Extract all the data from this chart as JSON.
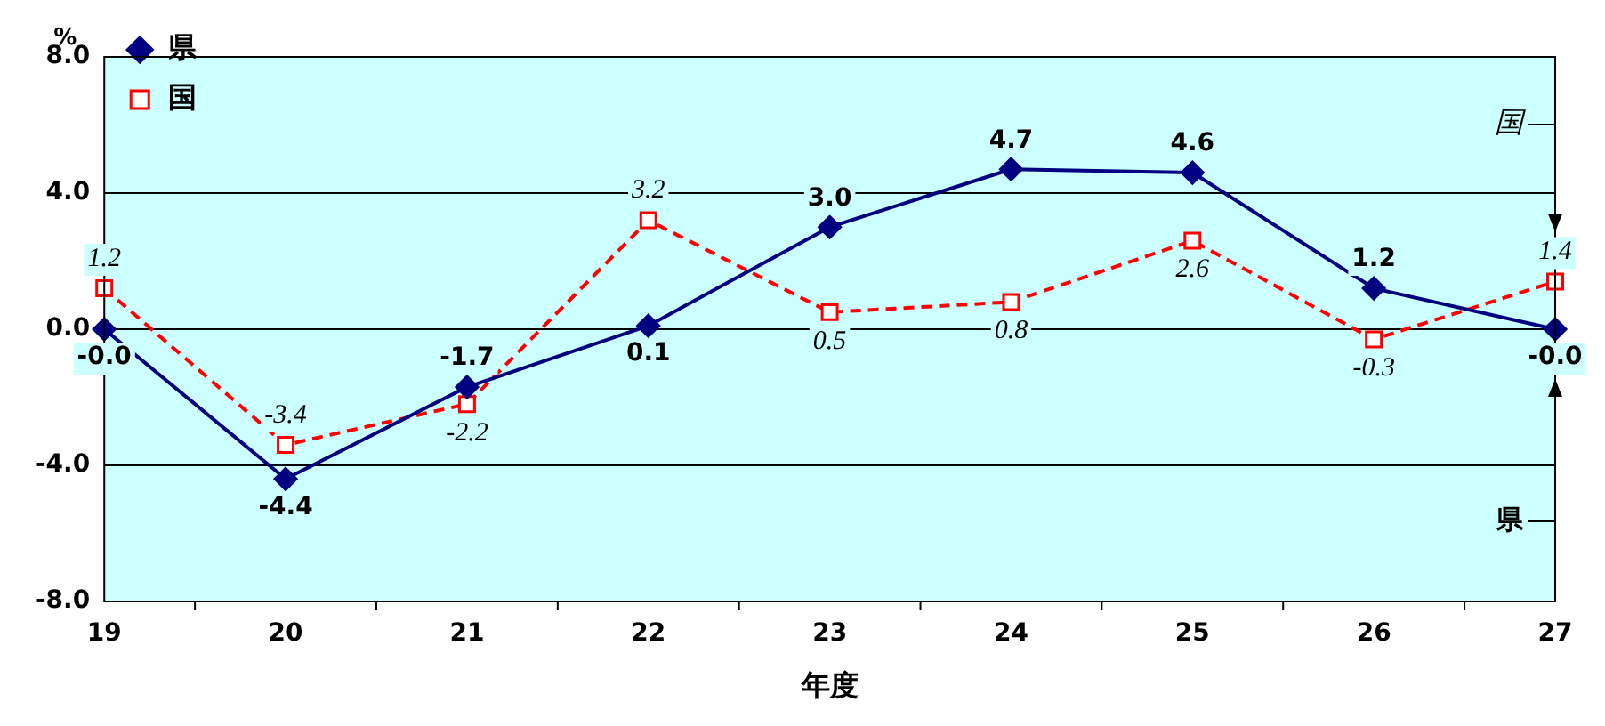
{
  "chart_data": {
    "type": "line",
    "xlabel": "年度",
    "ylabel": "%",
    "categories": [
      "19",
      "20",
      "21",
      "22",
      "23",
      "24",
      "25",
      "26",
      "27"
    ],
    "series": [
      {
        "name": "県",
        "color": "#000080",
        "values": [
          -0.0,
          -4.4,
          -1.7,
          0.1,
          3.0,
          4.7,
          4.6,
          1.2,
          -0.0
        ],
        "value_labels": [
          "-0.0",
          "-4.4",
          "-1.7",
          "0.1",
          "3.0",
          "4.7",
          "4.6",
          "1.2",
          "-0.0"
        ],
        "marker": "diamond",
        "line_style": "solid"
      },
      {
        "name": "国",
        "color": "#ff0000",
        "values": [
          1.2,
          -3.4,
          -2.2,
          3.2,
          0.5,
          0.8,
          2.6,
          -0.3,
          1.4
        ],
        "value_labels": [
          "1.2",
          "-3.4",
          "-2.2",
          "3.2",
          "0.5",
          "0.8",
          "2.6",
          "-0.3",
          "1.4"
        ],
        "marker": "square",
        "line_style": "dashed"
      }
    ],
    "ylim": [
      -8,
      8
    ],
    "yticks": [
      {
        "value": -8,
        "label": "-8.0"
      },
      {
        "value": -4,
        "label": "-4.0"
      },
      {
        "value": 0,
        "label": "0.0"
      },
      {
        "value": 4,
        "label": "4.0"
      },
      {
        "value": 8,
        "label": "8.0"
      }
    ],
    "grid": "y",
    "legend": "top left",
    "annotations": [
      "国",
      "県"
    ]
  }
}
